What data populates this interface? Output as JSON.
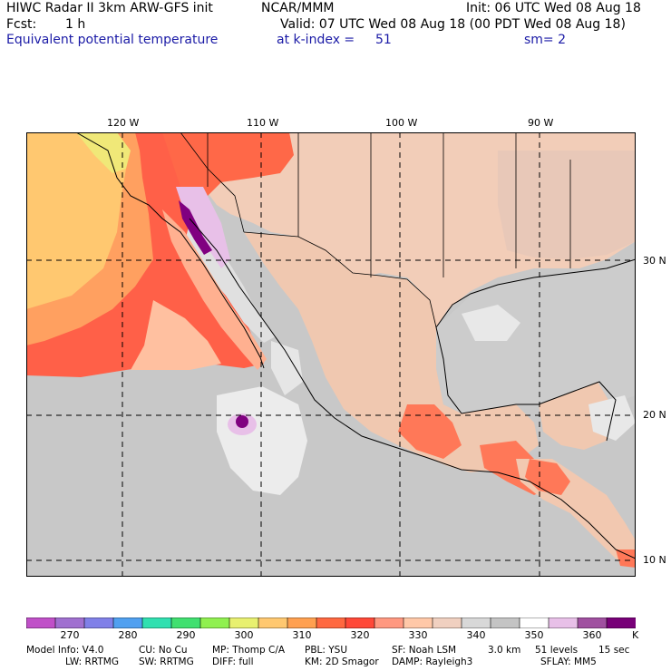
{
  "header": {
    "line1_left": "HIWC Radar II 3km ARW-GFS init",
    "line1_mid": "NCAR/MMM",
    "line1_right": "Init: 06 UTC Wed 08 Aug 18",
    "line2_left": "Fcst:",
    "line2_hours": "1 h",
    "line2_right": "Valid: 07 UTC Wed 08 Aug 18 (00 PDT Wed 08 Aug 18)",
    "line3_field": "Equivalent potential temperature",
    "line3_level": "at k-index =",
    "line3_level_value": "51",
    "line3_smooth": "sm= 2"
  },
  "axes": {
    "top_lon_labels": [
      "120 W",
      "110 W",
      "100 W",
      "90 W"
    ],
    "right_lat_labels": [
      "30 N",
      "20 N",
      "10 N"
    ]
  },
  "colorbar": {
    "unit": "K",
    "labels": [
      "270",
      "280",
      "290",
      "300",
      "310",
      "320",
      "330",
      "340",
      "350",
      "360"
    ],
    "colors": [
      "#c050c8",
      "#a070d0",
      "#8080e8",
      "#50a0f0",
      "#30e0b0",
      "#40e070",
      "#90f050",
      "#e8f070",
      "#ffc870",
      "#ffa050",
      "#ff6840",
      "#ff4838",
      "#ff9880",
      "#ffc8a8",
      "#f0d0c0",
      "#d8d8d8",
      "#c4c4c4",
      "#ffffff",
      "#e8c0e8",
      "#a050a0",
      "#780078"
    ]
  },
  "footer": {
    "line1": [
      "Model Info: V4.0",
      "CU: No Cu",
      "MP: Thomp C/A",
      "PBL: YSU",
      "SF: Noah LSM",
      "3.0 km",
      "51 levels",
      "15 sec"
    ],
    "line2": [
      "LW: RRTMG",
      "SW: RRTMG",
      "DIFF: full",
      "KM: 2D Smagor",
      "DAMP: Rayleigh3",
      "SFLAY: MM5"
    ]
  }
}
